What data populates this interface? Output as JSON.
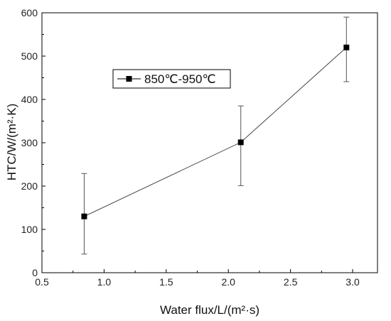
{
  "chart_data": {
    "type": "line",
    "xlabel": "Water flux/L/(m²·s)",
    "ylabel": "HTC/W/(m²·K)",
    "xlim": [
      0.5,
      3.2
    ],
    "ylim": [
      0,
      600
    ],
    "x_ticks": [
      "0.5",
      "1.0",
      "1.5",
      "2.0",
      "2.5",
      "3.0"
    ],
    "y_ticks": [
      "0",
      "100",
      "200",
      "300",
      "400",
      "500",
      "600"
    ],
    "grid": false,
    "legend_position": "top-left",
    "series": [
      {
        "name": "850℃-950℃",
        "marker": "square",
        "color": "#000000",
        "x": [
          0.84,
          2.1,
          2.95
        ],
        "y": [
          130,
          301,
          520
        ],
        "y_err_low": [
          43,
          201,
          441
        ],
        "y_err_high": [
          229,
          385,
          590
        ]
      }
    ]
  }
}
